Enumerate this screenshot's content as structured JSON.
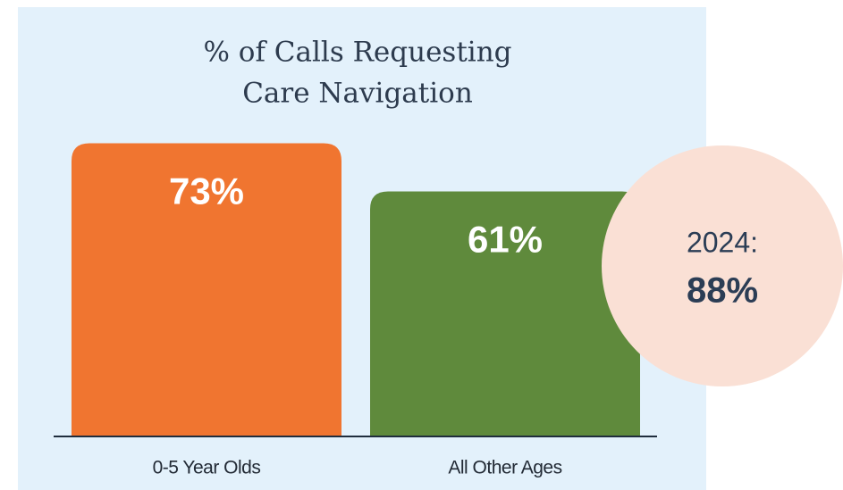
{
  "chart_data": {
    "type": "bar",
    "title": [
      "% of Calls Requesting",
      "Care Navigation"
    ],
    "categories": [
      "0-5 Year Olds",
      "All Other Ages"
    ],
    "values": [
      73,
      61
    ],
    "value_labels": [
      "73%",
      "61%"
    ],
    "colors": [
      "#f07530",
      "#5f8a3c"
    ],
    "annotation": {
      "label": "2024:",
      "text": "88%"
    }
  }
}
